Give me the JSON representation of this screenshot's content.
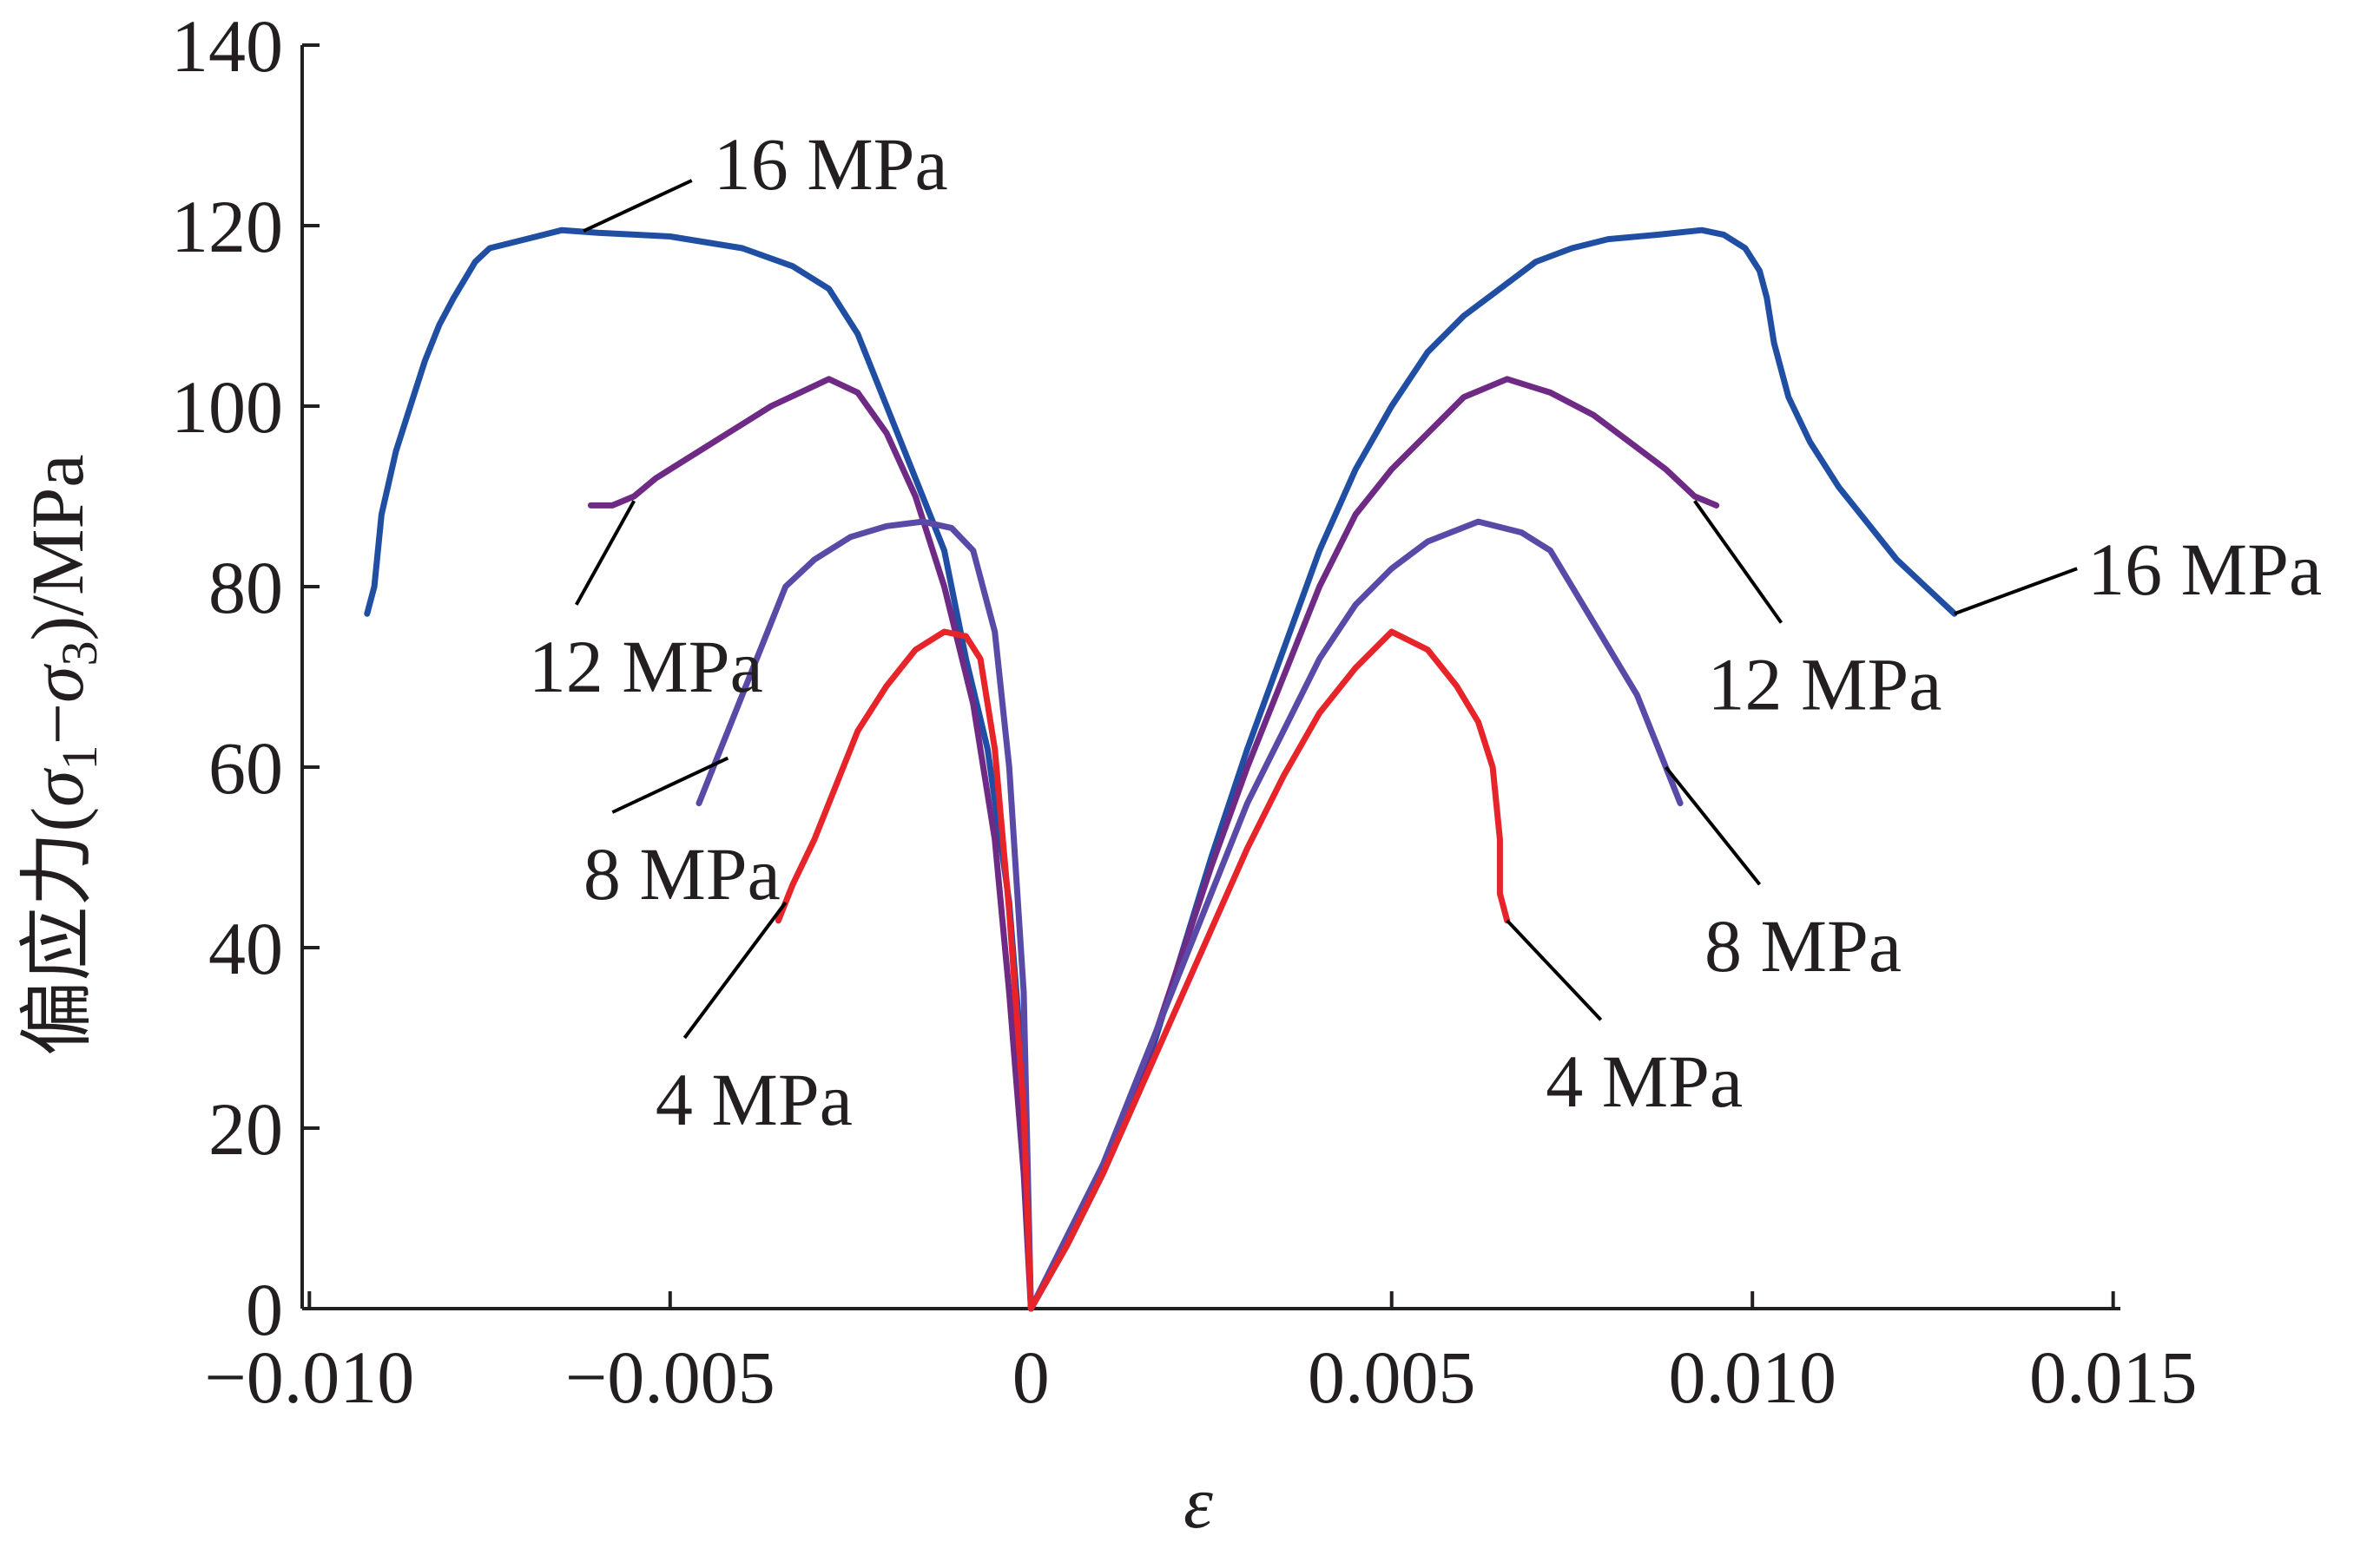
{
  "chart_data": {
    "type": "line",
    "title": "",
    "xlabel": "ε",
    "ylabel": "偏应力(σ1−σ3)/MPa",
    "ylabel_parts": {
      "prefix": "偏应力(",
      "sigma": "σ",
      "sub1": "1",
      "minus": "−",
      "sub3": "3",
      "suffix": ")/MPa"
    },
    "xlim": [
      -0.0101,
      0.0151
    ],
    "ylim": [
      0,
      140
    ],
    "xticks": [
      {
        "value": -0.01,
        "label": "−0.010"
      },
      {
        "value": -0.005,
        "label": "−0.005"
      },
      {
        "value": 0,
        "label": "0"
      },
      {
        "value": 0.005,
        "label": "0.005"
      },
      {
        "value": 0.01,
        "label": "0.010"
      },
      {
        "value": 0.015,
        "label": "0.015"
      }
    ],
    "yticks": [
      {
        "value": 0,
        "label": "0"
      },
      {
        "value": 20,
        "label": "20"
      },
      {
        "value": 40,
        "label": "40"
      },
      {
        "value": 60,
        "label": "60"
      },
      {
        "value": 80,
        "label": "80"
      },
      {
        "value": 100,
        "label": "100"
      },
      {
        "value": 120,
        "label": "120"
      },
      {
        "value": 140,
        "label": "140"
      }
    ],
    "grid": false,
    "legend": "none",
    "series": [
      {
        "name": "16 MPa",
        "color": "#1f4ea3",
        "points": [
          [
            -0.0092,
            77
          ],
          [
            -0.0091,
            80
          ],
          [
            -0.009,
            88
          ],
          [
            -0.0088,
            95
          ],
          [
            -0.0086,
            100
          ],
          [
            -0.0084,
            105
          ],
          [
            -0.0082,
            109
          ],
          [
            -0.008,
            112
          ],
          [
            -0.0077,
            116
          ],
          [
            -0.0075,
            117.5
          ],
          [
            -0.007,
            118.5
          ],
          [
            -0.0065,
            119.5
          ],
          [
            -0.006,
            119.2
          ],
          [
            -0.005,
            118.8
          ],
          [
            -0.004,
            117.5
          ],
          [
            -0.0033,
            115.5
          ],
          [
            -0.0028,
            113
          ],
          [
            -0.0024,
            108
          ],
          [
            -0.002,
            100
          ],
          [
            -0.0016,
            92
          ],
          [
            -0.0012,
            84
          ],
          [
            -0.0009,
            72
          ],
          [
            -0.0006,
            62
          ],
          [
            -0.0003,
            45
          ],
          [
            -0.0001,
            25
          ],
          [
            0.0,
            0
          ],
          [
            0.0005,
            7
          ],
          [
            0.001,
            15
          ],
          [
            0.0015,
            24
          ],
          [
            0.002,
            37
          ],
          [
            0.0025,
            50
          ],
          [
            0.003,
            62
          ],
          [
            0.0035,
            73
          ],
          [
            0.004,
            84
          ],
          [
            0.0045,
            93
          ],
          [
            0.005,
            100
          ],
          [
            0.0055,
            106
          ],
          [
            0.006,
            110
          ],
          [
            0.0065,
            113
          ],
          [
            0.007,
            116
          ],
          [
            0.0075,
            117.5
          ],
          [
            0.008,
            118.5
          ],
          [
            0.0087,
            119
          ],
          [
            0.0093,
            119.5
          ],
          [
            0.0096,
            119
          ],
          [
            0.0099,
            117.5
          ],
          [
            0.0101,
            115
          ],
          [
            0.0102,
            112
          ],
          [
            0.0103,
            107
          ],
          [
            0.0105,
            101
          ],
          [
            0.0108,
            96
          ],
          [
            0.0112,
            91
          ],
          [
            0.0116,
            87
          ],
          [
            0.012,
            83
          ],
          [
            0.0124,
            80
          ],
          [
            0.0128,
            77
          ]
        ]
      },
      {
        "name": "12 MPa",
        "color": "#6e2a84",
        "points": [
          [
            -0.0061,
            89
          ],
          [
            -0.0058,
            89
          ],
          [
            -0.0055,
            90
          ],
          [
            -0.0052,
            92
          ],
          [
            -0.0048,
            94
          ],
          [
            -0.0044,
            96
          ],
          [
            -0.004,
            98
          ],
          [
            -0.0036,
            100
          ],
          [
            -0.0032,
            101.5
          ],
          [
            -0.0028,
            103
          ],
          [
            -0.0024,
            101.5
          ],
          [
            -0.002,
            97
          ],
          [
            -0.0016,
            90
          ],
          [
            -0.0012,
            80
          ],
          [
            -0.0008,
            67
          ],
          [
            -0.0005,
            52
          ],
          [
            -0.0003,
            35
          ],
          [
            -0.0001,
            15
          ],
          [
            0.0,
            0
          ],
          [
            0.0005,
            7
          ],
          [
            0.001,
            15
          ],
          [
            0.0015,
            25
          ],
          [
            0.002,
            37
          ],
          [
            0.0025,
            49
          ],
          [
            0.003,
            60
          ],
          [
            0.0035,
            70
          ],
          [
            0.004,
            80
          ],
          [
            0.0045,
            88
          ],
          [
            0.005,
            93
          ],
          [
            0.0055,
            97
          ],
          [
            0.006,
            101
          ],
          [
            0.0066,
            103
          ],
          [
            0.0072,
            101.5
          ],
          [
            0.0078,
            99
          ],
          [
            0.0083,
            96
          ],
          [
            0.0088,
            93
          ],
          [
            0.0092,
            90
          ],
          [
            0.0095,
            89
          ]
        ]
      },
      {
        "name": "8 MPa",
        "color": "#5a4aa8",
        "points": [
          [
            -0.0046,
            56
          ],
          [
            -0.0044,
            60
          ],
          [
            -0.0042,
            64
          ],
          [
            -0.004,
            68
          ],
          [
            -0.0038,
            72
          ],
          [
            -0.0036,
            76
          ],
          [
            -0.0034,
            80
          ],
          [
            -0.003,
            83
          ],
          [
            -0.0025,
            85.5
          ],
          [
            -0.002,
            86.7
          ],
          [
            -0.0015,
            87.2
          ],
          [
            -0.0011,
            86.5
          ],
          [
            -0.0008,
            84
          ],
          [
            -0.0005,
            75
          ],
          [
            -0.0003,
            60
          ],
          [
            -0.0001,
            35
          ],
          [
            0.0,
            0
          ],
          [
            0.0005,
            8
          ],
          [
            0.001,
            16
          ],
          [
            0.0015,
            26
          ],
          [
            0.002,
            36
          ],
          [
            0.0025,
            46
          ],
          [
            0.003,
            56
          ],
          [
            0.0035,
            64
          ],
          [
            0.004,
            72
          ],
          [
            0.0045,
            78
          ],
          [
            0.005,
            82
          ],
          [
            0.0055,
            85
          ],
          [
            0.0062,
            87.2
          ],
          [
            0.0068,
            86
          ],
          [
            0.0072,
            84
          ],
          [
            0.0075,
            80
          ],
          [
            0.0078,
            76
          ],
          [
            0.0081,
            72
          ],
          [
            0.0084,
            68
          ],
          [
            0.0086,
            64
          ],
          [
            0.0088,
            60
          ],
          [
            0.009,
            56
          ]
        ]
      },
      {
        "name": "4 MPa",
        "color": "#e62429",
        "points": [
          [
            -0.0035,
            43
          ],
          [
            -0.0033,
            47
          ],
          [
            -0.003,
            52
          ],
          [
            -0.0027,
            58
          ],
          [
            -0.0024,
            64
          ],
          [
            -0.002,
            69
          ],
          [
            -0.0016,
            73
          ],
          [
            -0.0012,
            75
          ],
          [
            -0.0009,
            74.5
          ],
          [
            -0.0007,
            72
          ],
          [
            -0.0005,
            62
          ],
          [
            -0.0003,
            44
          ],
          [
            -0.0001,
            22
          ],
          [
            0.0,
            0
          ],
          [
            0.0005,
            7
          ],
          [
            0.001,
            15
          ],
          [
            0.0015,
            24
          ],
          [
            0.002,
            33
          ],
          [
            0.0025,
            42
          ],
          [
            0.003,
            51
          ],
          [
            0.0035,
            59
          ],
          [
            0.004,
            66
          ],
          [
            0.0045,
            71
          ],
          [
            0.005,
            75
          ],
          [
            0.0055,
            73
          ],
          [
            0.0059,
            69
          ],
          [
            0.0062,
            65
          ],
          [
            0.0064,
            60
          ],
          [
            0.0065,
            52
          ],
          [
            0.0065,
            46
          ],
          [
            0.0066,
            43
          ]
        ]
      }
    ],
    "annotations": [
      {
        "series": "16 MPa",
        "text": "16 MPa",
        "anchor": [
          -0.0062,
          119.4
        ],
        "label_at": [
          -0.0047,
          125
        ],
        "label_pos": "above-right"
      },
      {
        "series": "16 MPa",
        "text": "16 MPa",
        "anchor": [
          0.0128,
          77
        ],
        "label_at": [
          0.0145,
          82
        ],
        "label_pos": "right"
      },
      {
        "series": "12 MPa",
        "text": "12 MPa",
        "anchor": [
          -0.0055,
          89.5
        ],
        "label_at": [
          -0.0063,
          78
        ],
        "label_pos": "below-left"
      },
      {
        "series": "12 MPa",
        "text": "12 MPa",
        "anchor": [
          0.0092,
          89.5
        ],
        "label_at": [
          0.0104,
          76
        ],
        "label_pos": "below-right"
      },
      {
        "series": "8 MPa",
        "text": "8 MPa",
        "anchor": [
          -0.0042,
          61
        ],
        "label_at": [
          -0.0058,
          55
        ],
        "label_pos": "below-left"
      },
      {
        "series": "8 MPa",
        "text": "8 MPa",
        "anchor": [
          0.0088,
          60
        ],
        "label_at": [
          0.0101,
          47
        ],
        "label_pos": "below-right"
      },
      {
        "series": "4 MPa",
        "text": "4 MPa",
        "anchor": [
          -0.0034,
          45
        ],
        "label_at": [
          -0.0048,
          30
        ],
        "label_pos": "below-left"
      },
      {
        "series": "4 MPa",
        "text": "4 MPa",
        "anchor": [
          0.0066,
          43
        ],
        "label_at": [
          0.0079,
          32
        ],
        "label_pos": "below-right"
      }
    ]
  }
}
